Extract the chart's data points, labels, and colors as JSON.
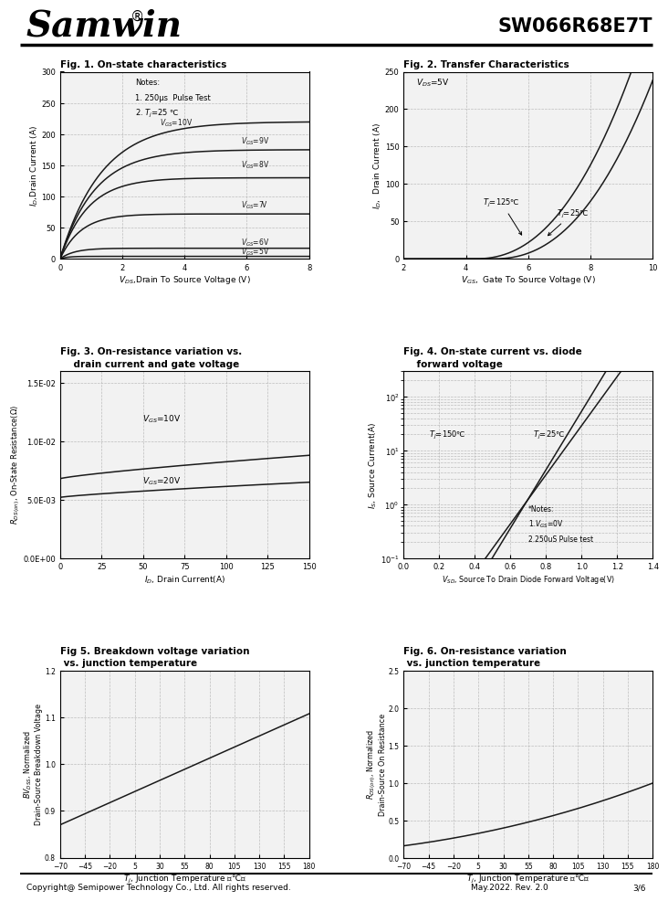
{
  "title_left": "Samwin",
  "title_right": "SW066R68E7T",
  "fig1_title": "Fig. 1. On-state characteristics",
  "fig2_title": "Fig. 2. Transfer Characteristics",
  "fig3_title_l1": "Fig. 3. On-resistance variation vs.",
  "fig3_title_l2": "    drain current and gate voltage",
  "fig4_title_l1": "Fig. 4. On-state current vs. diode",
  "fig4_title_l2": "    forward voltage",
  "fig5_title_l1": "Fig 5. Breakdown voltage variation",
  "fig5_title_l2": " vs. junction temperature",
  "fig6_title_l1": "Fig. 6. On-resistance variation",
  "fig6_title_l2": " vs. junction temperature",
  "footer_left": "Copyright@ Semipower Technology Co., Ltd. All rights reserved.",
  "footer_right": "May.2022. Rev. 2.0",
  "footer_page": "3/6",
  "bg_color": "#ffffff",
  "grid_color": "#b0b0b0",
  "line_color": "#1a1a1a"
}
